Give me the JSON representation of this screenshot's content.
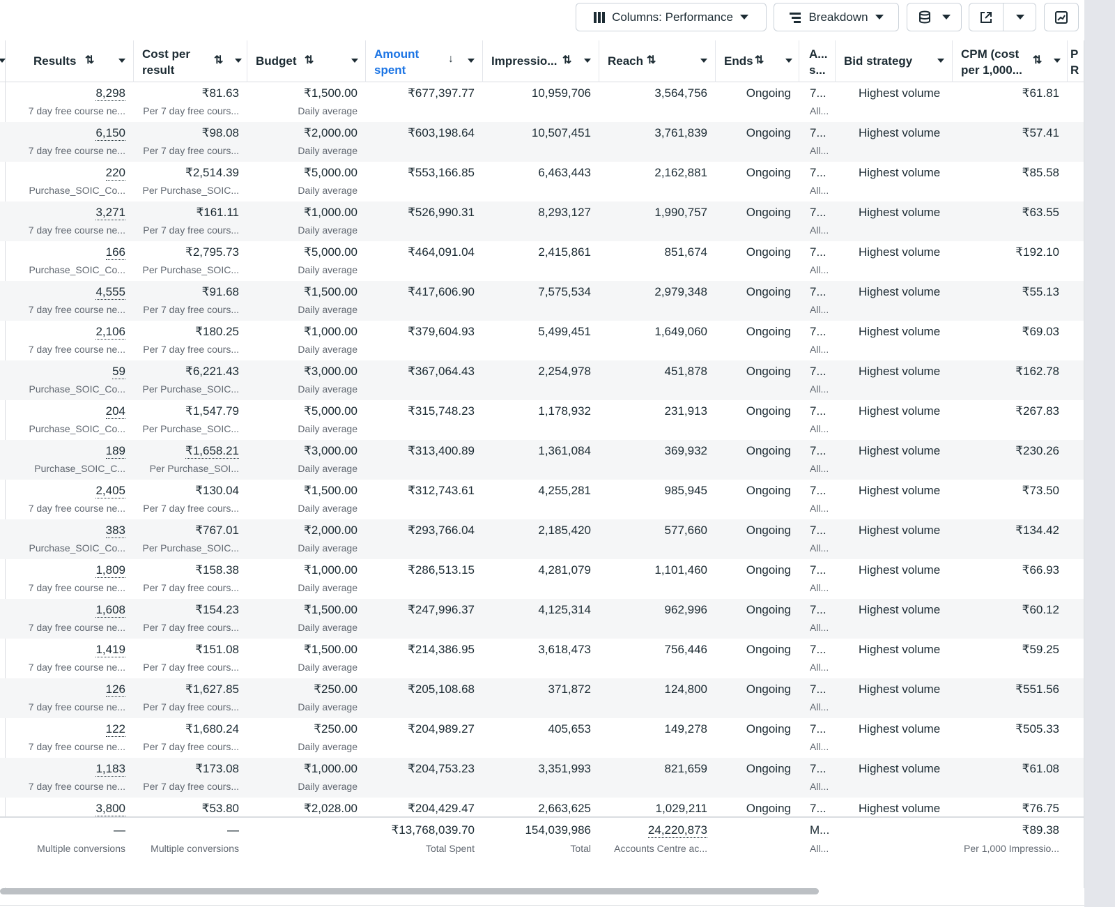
{
  "toolbar": {
    "columns_label": "Columns: Performance",
    "breakdown_label": "Breakdown",
    "icons": [
      "columns-icon",
      "breakdown-icon",
      "reports-icon",
      "export-icon",
      "chart-icon"
    ]
  },
  "columns": [
    {
      "key": "results",
      "label": "Results"
    },
    {
      "key": "cost",
      "label": "Cost per result"
    },
    {
      "key": "budget",
      "label": "Budget"
    },
    {
      "key": "amount",
      "label": "Amount spent"
    },
    {
      "key": "impr",
      "label": "Impressio..."
    },
    {
      "key": "reach",
      "label": "Reach"
    },
    {
      "key": "ends",
      "label": "Ends"
    },
    {
      "key": "attr",
      "label": "A... s..."
    },
    {
      "key": "bid",
      "label": "Bid strategy"
    },
    {
      "key": "cpm",
      "label": "CPM (cost per 1,000..."
    },
    {
      "key": "more",
      "label": "P R"
    }
  ],
  "rows": [
    {
      "results": "8,298",
      "results_sub": "7 day free course ne...",
      "cost": "₹81.63",
      "cost_sub": "Per 7 day free cours...",
      "budget": "₹1,500.00",
      "budget_sub": "Daily average",
      "amount": "₹677,397.77",
      "impr": "10,959,706",
      "reach": "3,564,756",
      "ends": "Ongoing",
      "attr": "7...",
      "attr_sub": "All...",
      "bid": "Highest volume",
      "cpm": "₹61.81"
    },
    {
      "results": "6,150",
      "results_sub": "7 day free course ne...",
      "cost": "₹98.08",
      "cost_sub": "Per 7 day free cours...",
      "budget": "₹2,000.00",
      "budget_sub": "Daily average",
      "amount": "₹603,198.64",
      "impr": "10,507,451",
      "reach": "3,761,839",
      "ends": "Ongoing",
      "attr": "7...",
      "attr_sub": "All...",
      "bid": "Highest volume",
      "cpm": "₹57.41"
    },
    {
      "results": "220",
      "results_sub": "Purchase_SOIC_Co...",
      "cost": "₹2,514.39",
      "cost_sub": "Per Purchase_SOIC...",
      "budget": "₹5,000.00",
      "budget_sub": "Daily average",
      "amount": "₹553,166.85",
      "impr": "6,463,443",
      "reach": "2,162,881",
      "ends": "Ongoing",
      "attr": "7...",
      "attr_sub": "All...",
      "bid": "Highest volume",
      "cpm": "₹85.58"
    },
    {
      "results": "3,271",
      "results_sub": "7 day free course ne...",
      "cost": "₹161.11",
      "cost_sub": "Per 7 day free cours...",
      "budget": "₹1,000.00",
      "budget_sub": "Daily average",
      "amount": "₹526,990.31",
      "impr": "8,293,127",
      "reach": "1,990,757",
      "ends": "Ongoing",
      "attr": "7...",
      "attr_sub": "All...",
      "bid": "Highest volume",
      "cpm": "₹63.55"
    },
    {
      "results": "166",
      "results_sub": "Purchase_SOIC_Co...",
      "cost": "₹2,795.73",
      "cost_sub": "Per Purchase_SOIC...",
      "budget": "₹5,000.00",
      "budget_sub": "Daily average",
      "amount": "₹464,091.04",
      "impr": "2,415,861",
      "reach": "851,674",
      "ends": "Ongoing",
      "attr": "7...",
      "attr_sub": "All...",
      "bid": "Highest volume",
      "cpm": "₹192.10"
    },
    {
      "results": "4,555",
      "results_sub": "7 day free course ne...",
      "cost": "₹91.68",
      "cost_sub": "Per 7 day free cours...",
      "budget": "₹1,500.00",
      "budget_sub": "Daily average",
      "amount": "₹417,606.90",
      "impr": "7,575,534",
      "reach": "2,979,348",
      "ends": "Ongoing",
      "attr": "7...",
      "attr_sub": "All...",
      "bid": "Highest volume",
      "cpm": "₹55.13"
    },
    {
      "results": "2,106",
      "results_sub": "7 day free course ne...",
      "cost": "₹180.25",
      "cost_sub": "Per 7 day free cours...",
      "budget": "₹1,000.00",
      "budget_sub": "Daily average",
      "amount": "₹379,604.93",
      "impr": "5,499,451",
      "reach": "1,649,060",
      "ends": "Ongoing",
      "attr": "7...",
      "attr_sub": "All...",
      "bid": "Highest volume",
      "cpm": "₹69.03"
    },
    {
      "results": "59",
      "results_sub": "Purchase_SOIC_Co...",
      "cost": "₹6,221.43",
      "cost_sub": "Per Purchase_SOIC...",
      "budget": "₹3,000.00",
      "budget_sub": "Daily average",
      "amount": "₹367,064.43",
      "impr": "2,254,978",
      "reach": "451,878",
      "ends": "Ongoing",
      "attr": "7...",
      "attr_sub": "All...",
      "bid": "Highest volume",
      "cpm": "₹162.78"
    },
    {
      "results": "204",
      "results_sub": "Purchase_SOIC_Co...",
      "cost": "₹1,547.79",
      "cost_sub": "Per Purchase_SOIC...",
      "budget": "₹5,000.00",
      "budget_sub": "Daily average",
      "amount": "₹315,748.23",
      "impr": "1,178,932",
      "reach": "231,913",
      "ends": "Ongoing",
      "attr": "7...",
      "attr_sub": "All...",
      "bid": "Highest volume",
      "cpm": "₹267.83"
    },
    {
      "results": "189",
      "results_sub": "Purchase_SOIC_C...",
      "cost": "₹1,658.21",
      "cost_sub": "Per Purchase_SOI...",
      "budget": "₹3,000.00",
      "budget_sub": "Daily average",
      "amount": "₹313,400.89",
      "impr": "1,361,084",
      "reach": "369,932",
      "ends": "Ongoing",
      "attr": "7...",
      "attr_sub": "All...",
      "bid": "Highest volume",
      "cpm": "₹230.26"
    },
    {
      "results": "2,405",
      "results_sub": "7 day free course ne...",
      "cost": "₹130.04",
      "cost_sub": "Per 7 day free cours...",
      "budget": "₹1,500.00",
      "budget_sub": "Daily average",
      "amount": "₹312,743.61",
      "impr": "4,255,281",
      "reach": "985,945",
      "ends": "Ongoing",
      "attr": "7...",
      "attr_sub": "All...",
      "bid": "Highest volume",
      "cpm": "₹73.50"
    },
    {
      "results": "383",
      "results_sub": "Purchase_SOIC_Co...",
      "cost": "₹767.01",
      "cost_sub": "Per Purchase_SOIC...",
      "budget": "₹2,000.00",
      "budget_sub": "Daily average",
      "amount": "₹293,766.04",
      "impr": "2,185,420",
      "reach": "577,660",
      "ends": "Ongoing",
      "attr": "7...",
      "attr_sub": "All...",
      "bid": "Highest volume",
      "cpm": "₹134.42"
    },
    {
      "results": "1,809",
      "results_sub": "7 day free course ne...",
      "cost": "₹158.38",
      "cost_sub": "Per 7 day free cours...",
      "budget": "₹1,000.00",
      "budget_sub": "Daily average",
      "amount": "₹286,513.15",
      "impr": "4,281,079",
      "reach": "1,101,460",
      "ends": "Ongoing",
      "attr": "7...",
      "attr_sub": "All...",
      "bid": "Highest volume",
      "cpm": "₹66.93"
    },
    {
      "results": "1,608",
      "results_sub": "7 day free course ne...",
      "cost": "₹154.23",
      "cost_sub": "Per 7 day free cours...",
      "budget": "₹1,500.00",
      "budget_sub": "Daily average",
      "amount": "₹247,996.37",
      "impr": "4,125,314",
      "reach": "962,996",
      "ends": "Ongoing",
      "attr": "7...",
      "attr_sub": "All...",
      "bid": "Highest volume",
      "cpm": "₹60.12"
    },
    {
      "results": "1,419",
      "results_sub": "7 day free course ne...",
      "cost": "₹151.08",
      "cost_sub": "Per 7 day free cours...",
      "budget": "₹1,500.00",
      "budget_sub": "Daily average",
      "amount": "₹214,386.95",
      "impr": "3,618,473",
      "reach": "756,446",
      "ends": "Ongoing",
      "attr": "7...",
      "attr_sub": "All...",
      "bid": "Highest volume",
      "cpm": "₹59.25"
    },
    {
      "results": "126",
      "results_sub": "7 day free course ne...",
      "cost": "₹1,627.85",
      "cost_sub": "Per 7 day free cours...",
      "budget": "₹250.00",
      "budget_sub": "Daily average",
      "amount": "₹205,108.68",
      "impr": "371,872",
      "reach": "124,800",
      "ends": "Ongoing",
      "attr": "7...",
      "attr_sub": "All...",
      "bid": "Highest volume",
      "cpm": "₹551.56"
    },
    {
      "results": "122",
      "results_sub": "7 day free course ne...",
      "cost": "₹1,680.24",
      "cost_sub": "Per 7 day free cours...",
      "budget": "₹250.00",
      "budget_sub": "Daily average",
      "amount": "₹204,989.27",
      "impr": "405,653",
      "reach": "149,278",
      "ends": "Ongoing",
      "attr": "7...",
      "attr_sub": "All...",
      "bid": "Highest volume",
      "cpm": "₹505.33"
    },
    {
      "results": "1,183",
      "results_sub": "7 day free course ne...",
      "cost": "₹173.08",
      "cost_sub": "Per 7 day free cours...",
      "budget": "₹1,000.00",
      "budget_sub": "Daily average",
      "amount": "₹204,753.23",
      "impr": "3,351,993",
      "reach": "821,659",
      "ends": "Ongoing",
      "attr": "7...",
      "attr_sub": "All...",
      "bid": "Highest volume",
      "cpm": "₹61.08"
    },
    {
      "results": "3,800",
      "results_sub": "",
      "cost": "₹53.80",
      "cost_sub": "",
      "budget": "₹2,028.00",
      "budget_sub": "",
      "amount": "₹204,429.47",
      "impr": "2,663,625",
      "reach": "1,029,211",
      "ends": "Ongoing",
      "attr": "7...",
      "attr_sub": "",
      "bid": "Highest volume",
      "cpm": "₹76.75"
    }
  ],
  "summary": {
    "results": "—",
    "results_sub": "Multiple conversions",
    "cost": "—",
    "cost_sub": "Multiple conversions",
    "amount": "₹13,768,039.70",
    "amount_sub": "Total Spent",
    "impr": "154,039,986",
    "impr_sub": "Total",
    "reach": "24,220,873",
    "reach_sub": "Accounts Centre ac...",
    "attr": "M...",
    "attr_sub": "All...",
    "cpm": "₹89.38",
    "cpm_sub": "Per 1,000 Impressio..."
  }
}
